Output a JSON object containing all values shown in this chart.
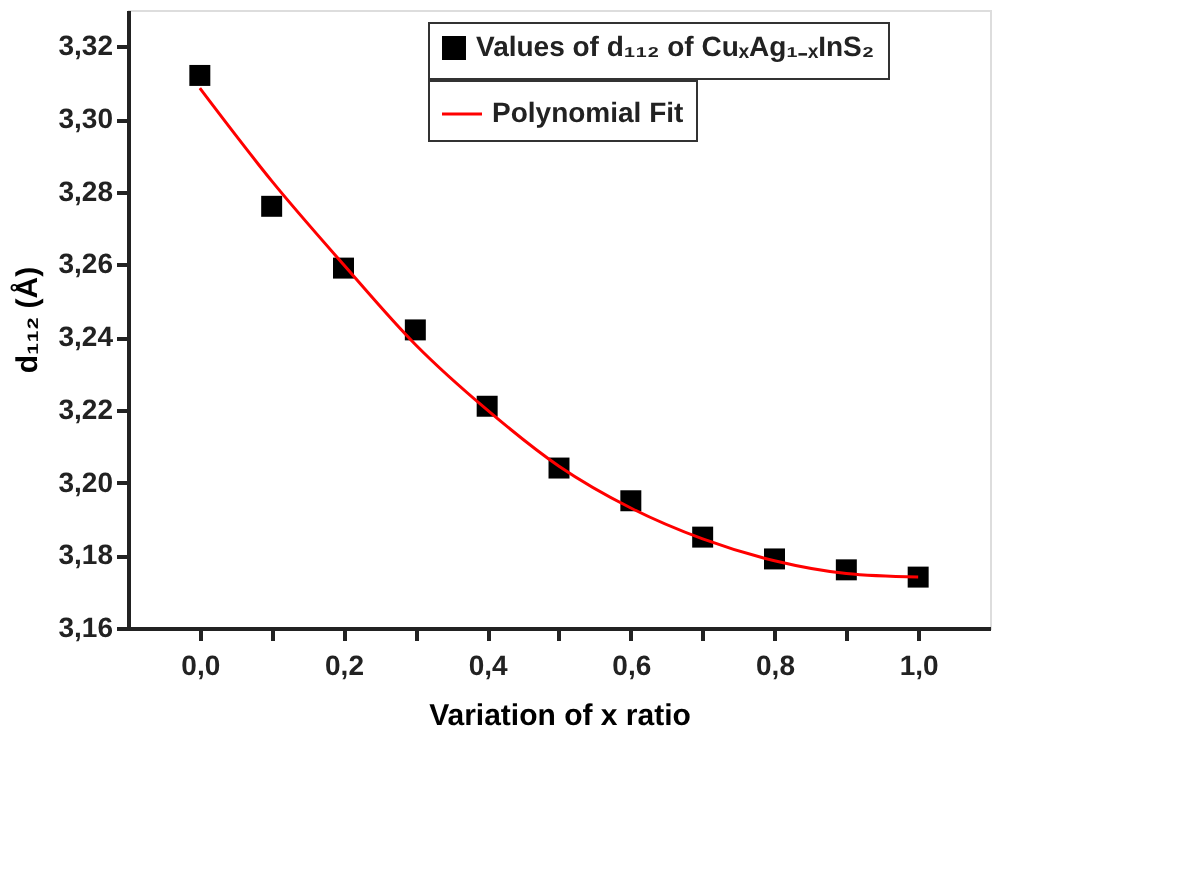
{
  "chart_data": {
    "type": "scatter",
    "xlabel": "Variation of x ratio",
    "ylabel": "d₁₁₂ (Å)",
    "x": [
      0.0,
      0.1,
      0.2,
      0.3,
      0.4,
      0.5,
      0.6,
      0.7,
      0.8,
      0.9,
      1.0
    ],
    "series": [
      {
        "name": "Values of d₁₁₂ of CuₓAg₁₋ₓInS₂",
        "marker": "square",
        "color": "#000000",
        "values": [
          3.312,
          3.276,
          3.259,
          3.242,
          3.221,
          3.204,
          3.195,
          3.185,
          3.179,
          3.176,
          3.174
        ]
      },
      {
        "name": "Polynomial Fit",
        "type": "line",
        "marker": "none",
        "line_style": "solid",
        "color": "#ff0000",
        "values": [
          3.3085,
          3.283,
          3.26,
          3.238,
          3.22,
          3.2045,
          3.193,
          3.1845,
          3.1785,
          3.175,
          3.174
        ]
      }
    ],
    "xlim": [
      -0.1,
      1.1
    ],
    "xticks": [
      {
        "value": 0.0,
        "label": "0,0"
      },
      {
        "value": 0.1,
        "label": null
      },
      {
        "value": 0.2,
        "label": "0,2"
      },
      {
        "value": 0.3,
        "label": null
      },
      {
        "value": 0.4,
        "label": "0,4"
      },
      {
        "value": 0.5,
        "label": null
      },
      {
        "value": 0.6,
        "label": "0,6"
      },
      {
        "value": 0.7,
        "label": null
      },
      {
        "value": 0.8,
        "label": "0,8"
      },
      {
        "value": 0.9,
        "label": null
      },
      {
        "value": 1.0,
        "label": "1,0"
      }
    ],
    "ylim": [
      3.16,
      3.33
    ],
    "yticks": [
      {
        "value": 3.16,
        "label": "3,16"
      },
      {
        "value": 3.18,
        "label": "3,18"
      },
      {
        "value": 3.2,
        "label": "3,20"
      },
      {
        "value": 3.22,
        "label": "3,22"
      },
      {
        "value": 3.24,
        "label": "3,24"
      },
      {
        "value": 3.26,
        "label": "3,26"
      },
      {
        "value": 3.28,
        "label": "3,28"
      },
      {
        "value": 3.3,
        "label": "3,30"
      },
      {
        "value": 3.32,
        "label": "3,32"
      }
    ],
    "grid": false,
    "legend": "top right"
  }
}
